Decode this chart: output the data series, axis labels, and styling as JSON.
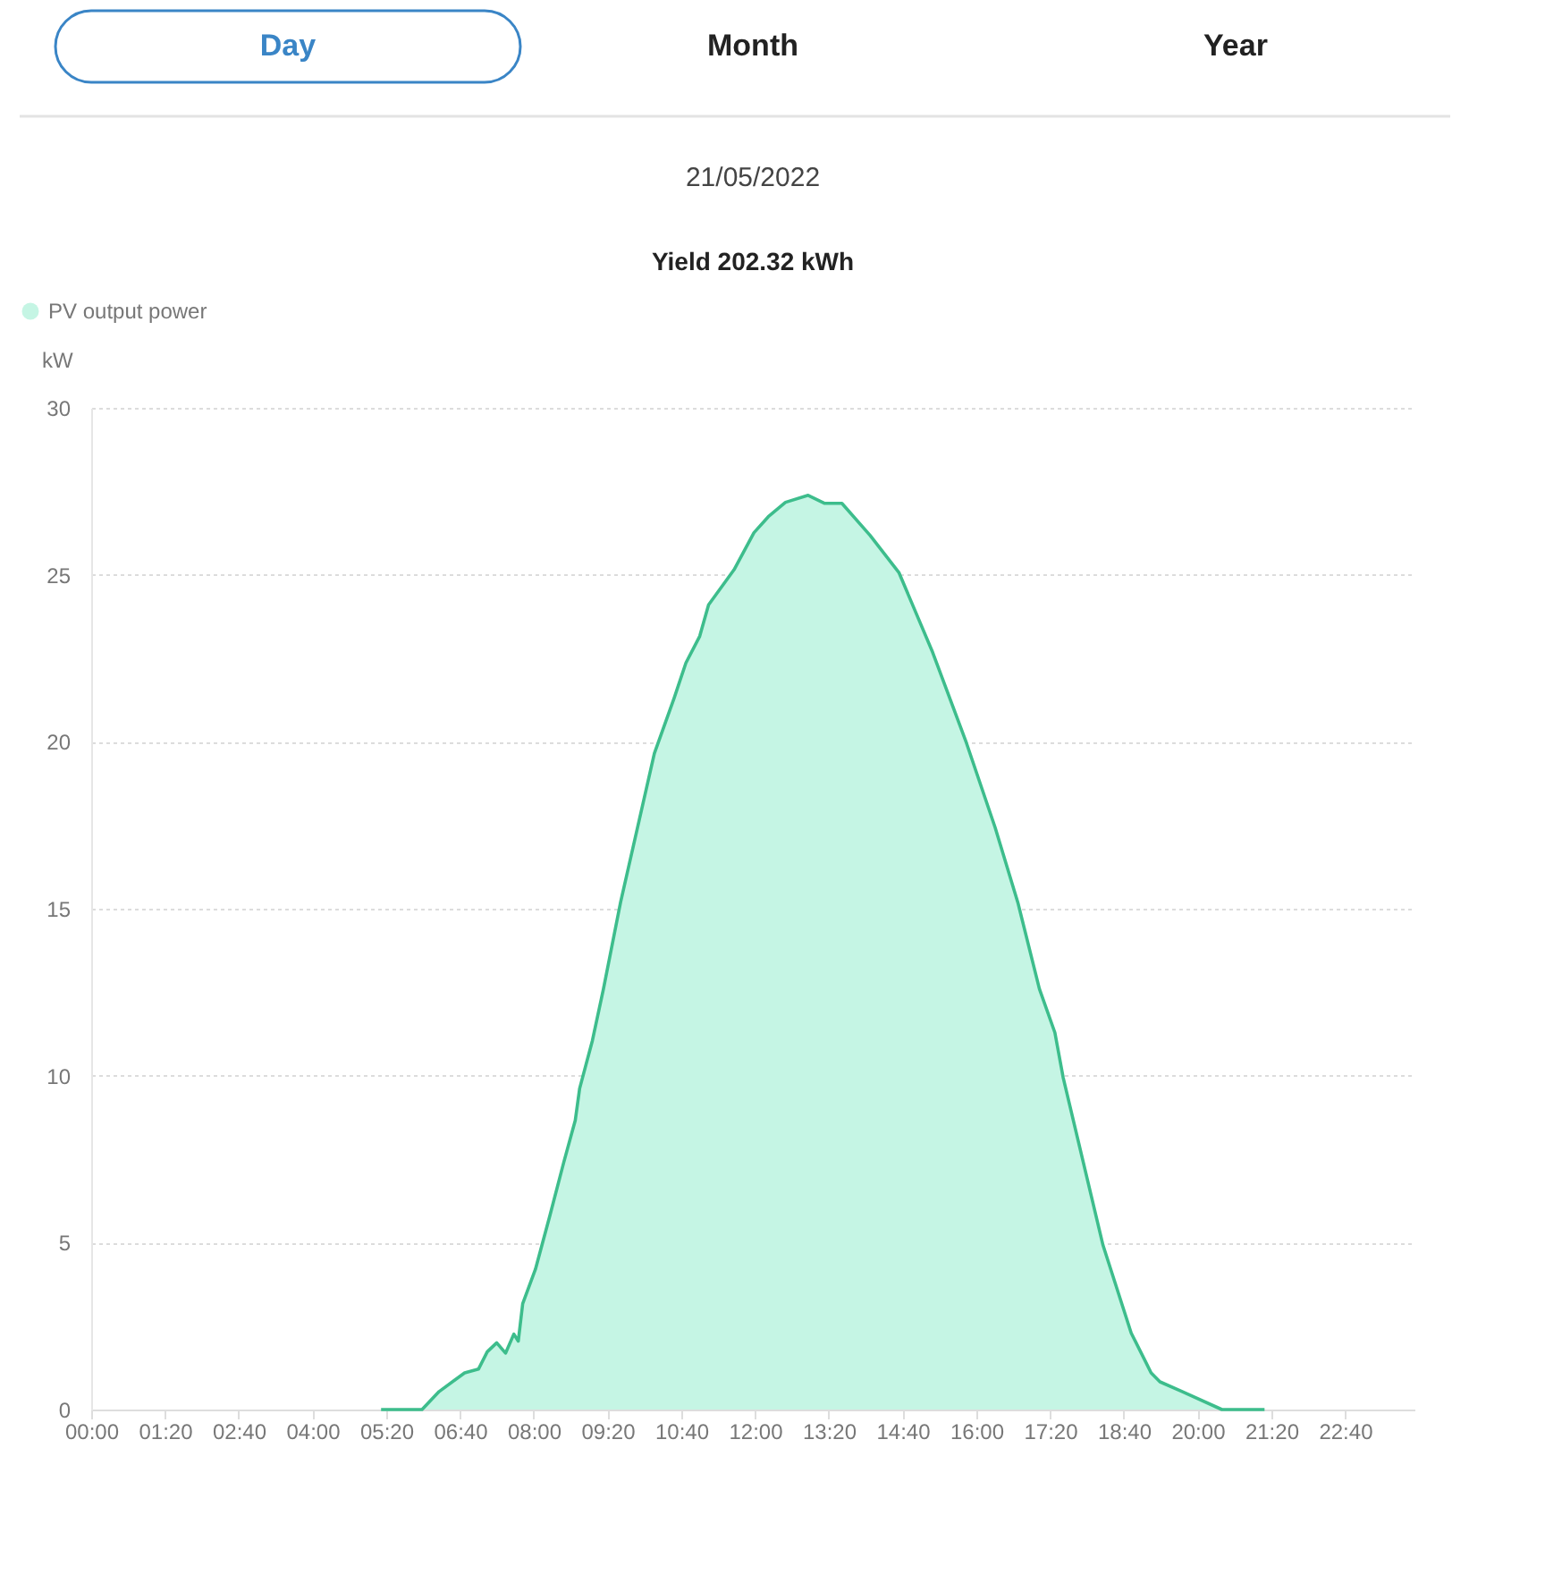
{
  "chart_data": {
    "type": "area",
    "title": "Yield 202.32 kWh",
    "subtitle": "21/05/2022",
    "annotations": [
      "Day",
      "Month",
      "Year"
    ],
    "ylabel": "kW",
    "legend": "top left",
    "grid": "y",
    "series": [
      {
        "name": "PV output power",
        "color": "#3dbd8c",
        "x": [
          5.24,
          5.98,
          6.29,
          6.75,
          7.0,
          7.16,
          7.33,
          7.49,
          7.64,
          7.72,
          7.8,
          8.03,
          8.29,
          8.54,
          8.75,
          8.83,
          9.06,
          9.26,
          9.57,
          10.18,
          10.54,
          10.75,
          11.0,
          11.16,
          11.62,
          11.98,
          12.24,
          12.55,
          12.96,
          13.26,
          13.57,
          14.08,
          14.6,
          15.21,
          15.82,
          16.34,
          16.75,
          17.14,
          17.42,
          17.57,
          18.29,
          18.8,
          19.16,
          19.32,
          19.72,
          20.44,
          21.21
        ],
        "values": [
          0,
          0,
          0.54,
          1.1,
          1.21,
          1.73,
          2.0,
          1.69,
          2.26,
          2.05,
          3.17,
          4.2,
          5.8,
          7.39,
          8.66,
          9.62,
          11.05,
          12.6,
          15.2,
          19.65,
          21.32,
          22.36,
          23.16,
          24.1,
          25.15,
          26.26,
          26.74,
          27.17,
          27.38,
          27.14,
          27.14,
          26.18,
          25.07,
          22.68,
          19.97,
          17.43,
          15.19,
          12.6,
          11.29,
          9.94,
          4.92,
          2.29,
          1.1,
          0.83,
          0.54,
          0,
          0
        ]
      }
    ],
    "xlim": [
      0,
      23.92
    ],
    "xticks": [
      {
        "value": 0,
        "label": "00:00"
      },
      {
        "value": 1.3333,
        "label": "01:20"
      },
      {
        "value": 2.6667,
        "label": "02:40"
      },
      {
        "value": 4,
        "label": "04:00"
      },
      {
        "value": 5.3333,
        "label": "05:20"
      },
      {
        "value": 6.6667,
        "label": "06:40"
      },
      {
        "value": 8,
        "label": "08:00"
      },
      {
        "value": 9.3333,
        "label": "09:20"
      },
      {
        "value": 10.6667,
        "label": "10:40"
      },
      {
        "value": 12,
        "label": "12:00"
      },
      {
        "value": 13.3333,
        "label": "13:20"
      },
      {
        "value": 14.6667,
        "label": "14:40"
      },
      {
        "value": 16,
        "label": "16:00"
      },
      {
        "value": 17.3333,
        "label": "17:20"
      },
      {
        "value": 18.6667,
        "label": "18:40"
      },
      {
        "value": 20,
        "label": "20:00"
      },
      {
        "value": 21.3333,
        "label": "21:20"
      },
      {
        "value": 22.6667,
        "label": "22:40"
      }
    ],
    "ylim": [
      0,
      30
    ],
    "yticks": [
      0,
      5,
      10,
      15,
      20,
      25,
      30
    ]
  }
}
